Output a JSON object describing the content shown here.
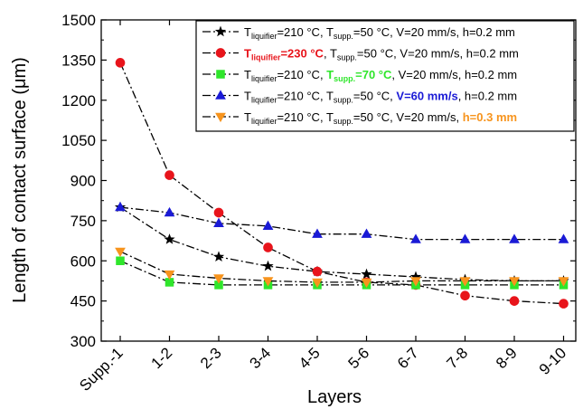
{
  "chart_data": {
    "type": "line",
    "xlabel": "Layers",
    "ylabel": "Length of contact surface (μm)",
    "categories": [
      "Supp.-1",
      "1-2",
      "2-3",
      "3-4",
      "4-5",
      "5-6",
      "6-7",
      "7-8",
      "8-9",
      "9-10"
    ],
    "ylim": [
      300,
      1500
    ],
    "yticks": [
      300,
      450,
      600,
      750,
      900,
      1050,
      1200,
      1350,
      1500
    ],
    "grid": false,
    "legend_position": "top-right",
    "series": [
      {
        "legend": [
          {
            "text": "T",
            "color": "#000000",
            "bold": false
          },
          {
            "text": "liquifier",
            "color": "#000000",
            "bold": false,
            "sub": true
          },
          {
            "text": "=210 °C, T",
            "color": "#000000",
            "bold": false
          },
          {
            "text": "supp.",
            "color": "#000000",
            "bold": false,
            "sub": true
          },
          {
            "text": "=50 °C, V=20 mm/s, h=0.2 mm",
            "color": "#000000",
            "bold": false
          }
        ],
        "color": "#000000",
        "marker": "star",
        "values": [
          800,
          680,
          615,
          580,
          560,
          550,
          540,
          530,
          525,
          525
        ]
      },
      {
        "legend": [
          {
            "text": "T",
            "color": "#e8141b",
            "bold": true
          },
          {
            "text": "liquifier",
            "color": "#e8141b",
            "bold": true,
            "sub": true
          },
          {
            "text": "=230 °C",
            "color": "#e8141b",
            "bold": true
          },
          {
            "text": ", T",
            "color": "#000000",
            "bold": false
          },
          {
            "text": "supp.",
            "color": "#000000",
            "bold": false,
            "sub": true
          },
          {
            "text": "=50 °C, V=20 mm/s, h=0.2 mm",
            "color": "#000000",
            "bold": false
          }
        ],
        "color": "#e8141b",
        "marker": "circle",
        "values": [
          1340,
          920,
          780,
          650,
          560,
          520,
          510,
          470,
          450,
          440
        ]
      },
      {
        "legend": [
          {
            "text": "T",
            "color": "#000000",
            "bold": false
          },
          {
            "text": "liquifier",
            "color": "#000000",
            "bold": false,
            "sub": true
          },
          {
            "text": "=210 °C, ",
            "color": "#000000",
            "bold": false
          },
          {
            "text": "T",
            "color": "#2fe62b",
            "bold": true
          },
          {
            "text": "supp.",
            "color": "#2fe62b",
            "bold": true,
            "sub": true
          },
          {
            "text": "=70 °C",
            "color": "#2fe62b",
            "bold": true
          },
          {
            "text": ", V=20 mm/s, h=0.2 mm",
            "color": "#000000",
            "bold": false
          }
        ],
        "color": "#2fe62b",
        "marker": "square",
        "values": [
          600,
          520,
          510,
          510,
          510,
          510,
          510,
          510,
          510,
          510
        ]
      },
      {
        "legend": [
          {
            "text": "T",
            "color": "#000000",
            "bold": false
          },
          {
            "text": "liquifier",
            "color": "#000000",
            "bold": false,
            "sub": true
          },
          {
            "text": "=210 °C, T",
            "color": "#000000",
            "bold": false
          },
          {
            "text": "supp.",
            "color": "#000000",
            "bold": false,
            "sub": true
          },
          {
            "text": "=50 °C, ",
            "color": "#000000",
            "bold": false
          },
          {
            "text": "V=60 mm/s",
            "color": "#1a1ad6",
            "bold": true
          },
          {
            "text": ", h=0.2 mm",
            "color": "#000000",
            "bold": false
          }
        ],
        "color": "#1a1ad6",
        "marker": "triangle-up",
        "values": [
          800,
          780,
          740,
          730,
          700,
          700,
          680,
          680,
          680,
          680
        ]
      },
      {
        "legend": [
          {
            "text": "T",
            "color": "#000000",
            "bold": false
          },
          {
            "text": "liquifier",
            "color": "#000000",
            "bold": false,
            "sub": true
          },
          {
            "text": "=210 °C, T",
            "color": "#000000",
            "bold": false
          },
          {
            "text": "supp.",
            "color": "#000000",
            "bold": false,
            "sub": true
          },
          {
            "text": "=50 °C, V=20 mm/s, ",
            "color": "#000000",
            "bold": false
          },
          {
            "text": "h=0.3 mm",
            "color": "#f7941d",
            "bold": true
          }
        ],
        "color": "#f7941d",
        "marker": "triangle-down",
        "values": [
          635,
          550,
          535,
          525,
          520,
          520,
          525,
          525,
          525,
          525
        ]
      }
    ]
  }
}
